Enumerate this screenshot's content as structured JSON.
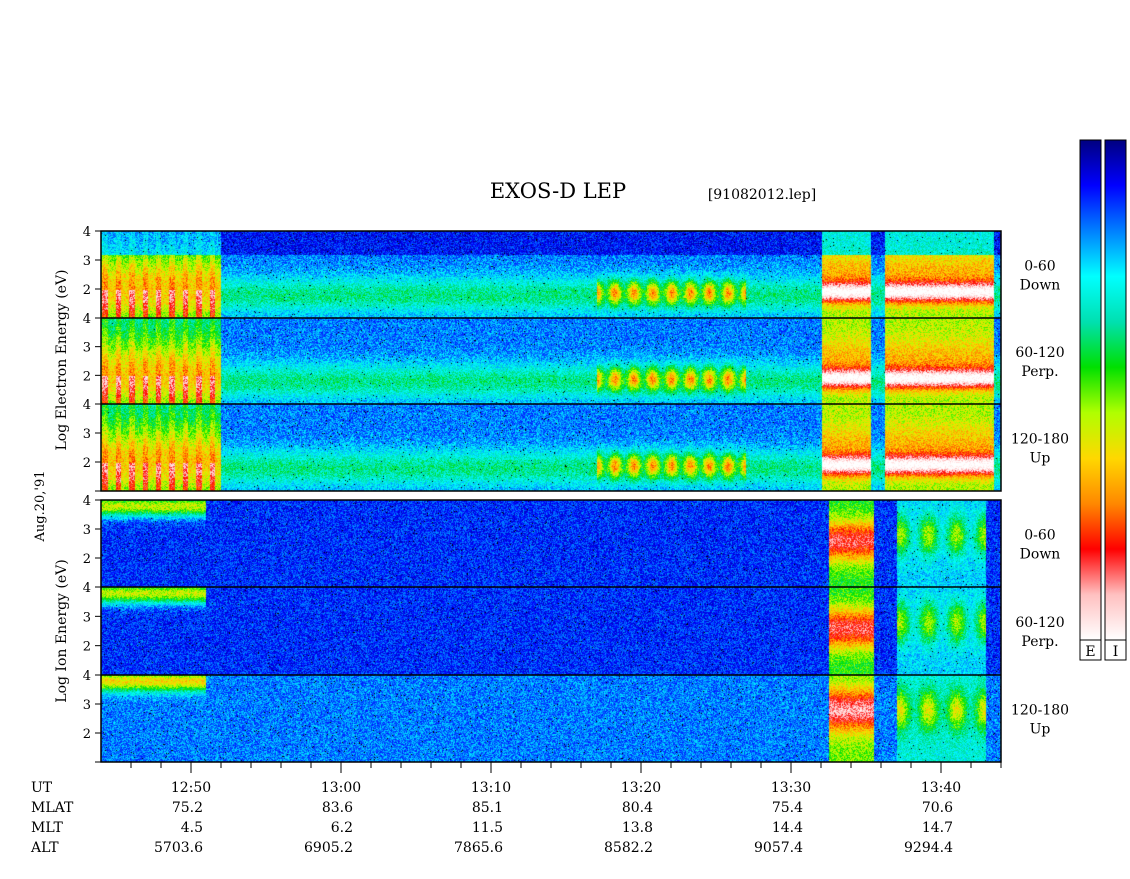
{
  "title": "EXOS-D LEP",
  "file_label": "[91082012.lep]",
  "date_label": "Aug.20,'91",
  "electron_ylabel": [
    "Log",
    "Electron",
    "Energy",
    "(eV)"
  ],
  "ion_ylabel": [
    "Log",
    "Ion",
    "Energy",
    "(eV)"
  ],
  "panels": [
    {
      "id": "e-down",
      "species": "electron",
      "angle": "0-60",
      "dir": "Down"
    },
    {
      "id": "e-perp",
      "species": "electron",
      "angle": "60-120",
      "dir": "Perp."
    },
    {
      "id": "e-up",
      "species": "electron",
      "angle": "120-180",
      "dir": "Up"
    },
    {
      "id": "i-down",
      "species": "ion",
      "angle": "0-60",
      "dir": "Down"
    },
    {
      "id": "i-perp",
      "species": "ion",
      "angle": "60-120",
      "dir": "Perp."
    },
    {
      "id": "i-up",
      "species": "ion",
      "angle": "120-180",
      "dir": "Up"
    }
  ],
  "colorbar": {
    "labels": [
      "E",
      "I"
    ],
    "colors": [
      "#ffffff",
      "#ffc0c0",
      "#ff0000",
      "#ff8800",
      "#ffd800",
      "#b0ff00",
      "#00e000",
      "#00e0b0",
      "#00ffff",
      "#0080ff",
      "#0000ff",
      "#000080"
    ]
  },
  "chart_data": {
    "type": "heatmap",
    "x_unit": "UT",
    "xlim": [
      "12:44",
      "13:44"
    ],
    "ylim": [
      1,
      4
    ],
    "yscale": "log",
    "y_ticks": [
      2,
      3,
      4
    ],
    "x_ticks": [
      "12:50",
      "13:00",
      "13:10",
      "13:20",
      "13:30",
      "13:40"
    ],
    "rows": [
      {
        "label": "UT",
        "values": [
          "12:50",
          "13:00",
          "13:10",
          "13:20",
          "13:30",
          "13:40"
        ]
      },
      {
        "label": "MLAT",
        "values": [
          "75.2",
          "83.6",
          "85.1",
          "80.4",
          "75.4",
          "70.6"
        ]
      },
      {
        "label": "MLT",
        "values": [
          "4.5",
          "6.2",
          "11.5",
          "13.8",
          "14.4",
          "14.7"
        ]
      },
      {
        "label": "ALT",
        "values": [
          "5703.6",
          "6905.2",
          "7865.6",
          "8582.2",
          "9057.4",
          "9294.4"
        ]
      }
    ]
  }
}
